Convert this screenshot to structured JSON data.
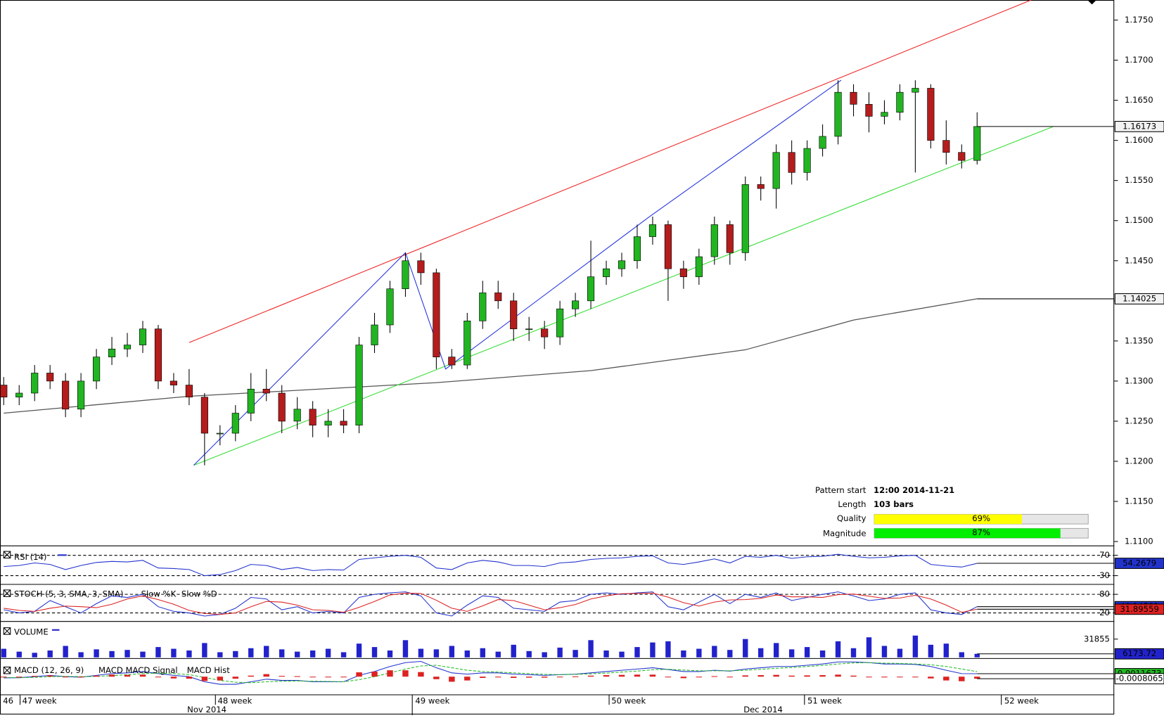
{
  "chart_data": [
    {
      "type": "candlestick",
      "open": [
        1.1295,
        1.128,
        1.1285,
        1.131,
        1.13,
        1.1265,
        1.13,
        1.133,
        1.134,
        1.1345,
        1.1365,
        1.13,
        1.1295,
        1.128,
        1.1235,
        1.1235,
        1.126,
        1.129,
        1.1285,
        1.125,
        1.1265,
        1.1245,
        1.125,
        1.1245,
        1.1345,
        1.137,
        1.1415,
        1.145,
        1.1435,
        1.133,
        1.132,
        1.1375,
        1.141,
        1.14,
        1.1365,
        1.1365,
        1.1355,
        1.139,
        1.14,
        1.143,
        1.144,
        1.145,
        1.148,
        1.1495,
        1.144,
        1.143,
        1.1455,
        1.1495,
        1.146,
        1.1545,
        1.154,
        1.1585,
        1.156,
        1.159,
        1.1605,
        1.166,
        1.1645,
        1.163,
        1.1635,
        1.166,
        1.1665,
        1.16,
        1.1585,
        1.1575
      ],
      "high": [
        1.1305,
        1.1295,
        1.132,
        1.132,
        1.131,
        1.131,
        1.134,
        1.1355,
        1.136,
        1.1375,
        1.137,
        1.131,
        1.1315,
        1.1285,
        1.1245,
        1.127,
        1.131,
        1.1315,
        1.1295,
        1.128,
        1.1275,
        1.1265,
        1.1265,
        1.1355,
        1.1385,
        1.1425,
        1.146,
        1.146,
        1.144,
        1.134,
        1.1385,
        1.1425,
        1.1425,
        1.141,
        1.138,
        1.1375,
        1.14,
        1.141,
        1.1475,
        1.145,
        1.146,
        1.1495,
        1.1505,
        1.15,
        1.145,
        1.1465,
        1.1505,
        1.15,
        1.1555,
        1.1555,
        1.1595,
        1.16,
        1.16,
        1.162,
        1.1675,
        1.167,
        1.166,
        1.165,
        1.167,
        1.1675,
        1.167,
        1.1625,
        1.1595,
        1.1635
      ],
      "low": [
        1.127,
        1.127,
        1.1275,
        1.129,
        1.1255,
        1.1255,
        1.129,
        1.132,
        1.133,
        1.1335,
        1.129,
        1.1285,
        1.127,
        1.1195,
        1.122,
        1.1225,
        1.125,
        1.1275,
        1.1235,
        1.124,
        1.123,
        1.123,
        1.1235,
        1.1235,
        1.1335,
        1.136,
        1.1405,
        1.142,
        1.1315,
        1.1315,
        1.1315,
        1.1365,
        1.139,
        1.135,
        1.135,
        1.134,
        1.1345,
        1.138,
        1.139,
        1.142,
        1.143,
        1.144,
        1.147,
        1.14,
        1.1415,
        1.142,
        1.1445,
        1.1445,
        1.145,
        1.1525,
        1.1515,
        1.1545,
        1.155,
        1.158,
        1.1595,
        1.163,
        1.161,
        1.162,
        1.1625,
        1.156,
        1.159,
        1.157,
        1.1565,
        1.157
      ],
      "close": [
        1.128,
        1.1285,
        1.131,
        1.13,
        1.1265,
        1.13,
        1.133,
        1.134,
        1.1345,
        1.1365,
        1.13,
        1.1295,
        1.128,
        1.1235,
        1.1235,
        1.126,
        1.129,
        1.1285,
        1.125,
        1.1265,
        1.1245,
        1.125,
        1.1245,
        1.1345,
        1.137,
        1.1415,
        1.145,
        1.1435,
        1.133,
        1.132,
        1.1375,
        1.141,
        1.14,
        1.1365,
        1.1365,
        1.1355,
        1.139,
        1.14,
        1.143,
        1.144,
        1.145,
        1.148,
        1.1495,
        1.144,
        1.143,
        1.1455,
        1.1495,
        1.146,
        1.1545,
        1.154,
        1.1585,
        1.156,
        1.159,
        1.1605,
        1.166,
        1.1645,
        1.163,
        1.1635,
        1.166,
        1.1665,
        1.16,
        1.1585,
        1.1575,
        1.16173
      ],
      "up_color": "#22b522",
      "down_color": "#b51c1c",
      "ylim": [
        1.1096,
        1.1775
      ],
      "yticks": [
        {
          "value": 1.11,
          "label": "1.1100"
        },
        {
          "value": 1.115,
          "label": "1.1150"
        },
        {
          "value": 1.12,
          "label": "1.1200"
        },
        {
          "value": 1.125,
          "label": "1.1250"
        },
        {
          "value": 1.13,
          "label": "1.1300"
        },
        {
          "value": 1.135,
          "label": "1.1350"
        },
        {
          "value": 1.14,
          "label": "1.1400"
        },
        {
          "value": 1.145,
          "label": "1.1450"
        },
        {
          "value": 1.15,
          "label": "1.1500"
        },
        {
          "value": 1.155,
          "label": "1.1550"
        },
        {
          "value": 1.16,
          "label": "1.1600"
        },
        {
          "value": 1.165,
          "label": "1.1650"
        },
        {
          "value": 1.17,
          "label": "1.1700"
        },
        {
          "value": 1.175,
          "label": "1.1750"
        }
      ],
      "moving_average": {
        "color": "#555555",
        "x": [
          0,
          12,
          28,
          38,
          48,
          55,
          63
        ],
        "values": [
          1.126,
          1.1281,
          1.1298,
          1.1313,
          1.1339,
          1.1376,
          1.14025
        ]
      },
      "resistance": {
        "color": "#ee2222",
        "x": [
          12,
          66.5
        ],
        "values": [
          1.1348,
          1.1775
        ]
      },
      "support": {
        "color": "#33dd33",
        "x": [
          12.3,
          67.9
        ],
        "values": [
          1.1195,
          1.1617
        ]
      },
      "zigzag": {
        "color": "#2233dd",
        "x": [
          12.3,
          26,
          28.6,
          41.8,
          54.2
        ],
        "values": [
          1.1195,
          1.146,
          1.1315,
          1.1505,
          1.1675
        ]
      },
      "pattern": {
        "start_label": "Pattern start",
        "start": "12:00 2014-11-21",
        "length_label": "Length",
        "length": "103 bars",
        "quality_label": "Quality",
        "quality": 69,
        "quality_value_label": "69%",
        "quality_color": "#ffff00",
        "magnitude_label": "Magnitude",
        "magnitude": 87,
        "magnitude_value_label": "87%",
        "magnitude_color": "#00ee00"
      }
    },
    {
      "type": "line",
      "title": "RSI (14)",
      "levels_dashed": true,
      "series": [
        {
          "color": "#2233cc",
          "values": [
            48,
            50,
            55,
            52,
            42,
            50,
            56,
            58,
            57,
            60,
            45,
            44,
            42,
            30,
            32,
            40,
            52,
            50,
            42,
            46,
            40,
            42,
            41,
            62,
            65,
            68,
            70,
            66,
            45,
            42,
            55,
            60,
            57,
            50,
            50,
            48,
            55,
            57,
            62,
            64,
            65,
            68,
            69,
            55,
            52,
            57,
            63,
            55,
            68,
            66,
            70,
            64,
            67,
            68,
            72,
            68,
            65,
            66,
            69,
            70,
            52,
            49,
            47,
            54.2679
          ]
        }
      ],
      "ylim": [
        15,
        85
      ],
      "yticks": [
        30,
        70
      ]
    },
    {
      "type": "line",
      "title": "STOCH (5, 3, SMA, 3, SMA)",
      "levels_dashed": true,
      "series": [
        {
          "name": "Slow %K",
          "color": "#2233cc",
          "values": [
            30,
            20,
            25,
            60,
            40,
            20,
            50,
            75,
            70,
            80,
            40,
            25,
            20,
            10,
            15,
            35,
            70,
            65,
            30,
            40,
            20,
            25,
            20,
            70,
            80,
            85,
            88,
            75,
            20,
            10,
            45,
            75,
            70,
            35,
            30,
            25,
            55,
            60,
            80,
            85,
            80,
            85,
            88,
            40,
            30,
            55,
            80,
            50,
            80,
            70,
            85,
            60,
            70,
            80,
            88,
            75,
            60,
            65,
            80,
            85,
            30,
            20,
            15,
            40.14581
          ]
        },
        {
          "name": "Slow %D",
          "color": "#dd2222",
          "values": [
            35,
            28,
            25,
            35,
            42,
            40,
            37,
            48,
            65,
            75,
            63,
            48,
            28,
            18,
            15,
            20,
            40,
            57,
            55,
            45,
            30,
            28,
            22,
            38,
            57,
            78,
            84,
            83,
            61,
            35,
            25,
            43,
            63,
            60,
            45,
            30,
            37,
            47,
            65,
            75,
            82,
            83,
            84,
            71,
            53,
            42,
            55,
            62,
            63,
            67,
            78,
            72,
            72,
            70,
            79,
            81,
            74,
            67,
            68,
            77,
            65,
            45,
            22,
            31.89559
          ]
        }
      ],
      "ylim": [
        -4,
        111
      ],
      "yticks": [
        20,
        80
      ]
    },
    {
      "type": "bar",
      "title": "VOLUME",
      "color": "#2222cc",
      "values": [
        15000,
        10000,
        8000,
        12000,
        20000,
        9000,
        14000,
        11000,
        13000,
        10000,
        18000,
        15000,
        12000,
        25000,
        9000,
        11000,
        16000,
        20000,
        14000,
        10000,
        12000,
        15000,
        9000,
        24000,
        18000,
        12000,
        30000,
        15000,
        14000,
        20000,
        12000,
        16000,
        10000,
        22000,
        11000,
        9000,
        17000,
        13000,
        30000,
        12000,
        10000,
        18000,
        26000,
        28000,
        12000,
        15000,
        20000,
        13000,
        32000,
        16000,
        25000,
        14000,
        18000,
        12000,
        28000,
        16000,
        35000,
        20000,
        15000,
        38000,
        22000,
        24000,
        9000,
        6173.72
      ],
      "ylim": [
        0,
        62000
      ],
      "yticks": [
        31855
      ]
    },
    {
      "type": "macd",
      "title": "MACD (12, 26, 9)",
      "ylim": [
        -0.007,
        0.007
      ],
      "series": [
        {
          "name": "MACD",
          "color": "#2233cc",
          "values": [
            -0.0005,
            -0.0004,
            0.0,
            0.0005,
            0.0,
            -0.0002,
            0.0005,
            0.0012,
            0.0015,
            0.002,
            0.0012,
            0.0005,
            0.0,
            -0.002,
            -0.003,
            -0.003,
            -0.002,
            -0.001,
            -0.0015,
            -0.0015,
            -0.002,
            -0.002,
            -0.002,
            0.0005,
            0.002,
            0.004,
            0.0055,
            0.006,
            0.0035,
            0.0015,
            0.001,
            0.0015,
            0.0015,
            0.001,
            0.0008,
            0.0005,
            0.0008,
            0.001,
            0.0015,
            0.002,
            0.0025,
            0.003,
            0.0035,
            0.0028,
            0.002,
            0.002,
            0.0025,
            0.0022,
            0.003,
            0.0035,
            0.004,
            0.004,
            0.0045,
            0.005,
            0.0058,
            0.0058,
            0.0055,
            0.005,
            0.005,
            0.0048,
            0.004,
            0.0025,
            0.0012,
            0.0011673
          ]
        },
        {
          "name": "MACD Signal",
          "color": "#22bb22",
          "dashed": true,
          "values": [
            -0.0003,
            -0.0004,
            -0.0003,
            0.0,
            0.0001,
            0.0,
            0.0001,
            0.0004,
            0.0008,
            0.0012,
            0.0014,
            0.0012,
            0.0008,
            -0.0003,
            -0.0015,
            -0.0022,
            -0.0024,
            -0.002,
            -0.0018,
            -0.0017,
            -0.0018,
            -0.0019,
            -0.002,
            -0.0012,
            0.0,
            0.0015,
            0.003,
            0.0042,
            0.0045,
            0.0035,
            0.0025,
            0.002,
            0.0018,
            0.0015,
            0.0012,
            0.0009,
            0.0008,
            0.0009,
            0.0011,
            0.0014,
            0.0018,
            0.0022,
            0.0027,
            0.0029,
            0.0026,
            0.0023,
            0.0023,
            0.0023,
            0.0025,
            0.0029,
            0.0033,
            0.0036,
            0.004,
            0.0044,
            0.005,
            0.0054,
            0.0055,
            0.0053,
            0.0052,
            0.005,
            0.0047,
            0.004,
            0.003,
            0.0019738
          ]
        },
        {
          "name": "MACD Hist",
          "color": "#dd2222",
          "style": "bar",
          "values": [
            -0.0002,
            0.0,
            0.0003,
            0.0005,
            -0.0001,
            -0.0002,
            0.0004,
            0.0008,
            0.0007,
            0.0008,
            -0.0002,
            -0.0007,
            -0.0008,
            -0.0017,
            -0.0015,
            -0.0008,
            0.0004,
            0.001,
            0.0003,
            0.0002,
            -0.0002,
            -0.0001,
            0.0,
            0.0017,
            0.002,
            0.0025,
            0.0025,
            0.0018,
            -0.001,
            -0.002,
            -0.0015,
            -0.0005,
            -0.0003,
            -0.0005,
            -0.0004,
            -0.0004,
            0.0,
            0.0001,
            0.0004,
            0.0006,
            0.0007,
            0.0008,
            0.0008,
            -0.0001,
            -0.0006,
            -0.0003,
            0.0002,
            -0.0001,
            0.0005,
            0.0006,
            0.0007,
            0.0004,
            0.0005,
            0.0006,
            0.0008,
            0.0004,
            0.0,
            -0.0003,
            -0.0002,
            -0.0002,
            -0.0007,
            -0.0015,
            -0.0018,
            -0.0008065
          ]
        }
      ]
    }
  ],
  "x_axis": {
    "weeks": [
      "46",
      "47 week",
      "48 week",
      "49 week",
      "50 week",
      "51 week",
      "52 week"
    ],
    "months": [
      "Nov 2014",
      "Dec 2014"
    ]
  }
}
